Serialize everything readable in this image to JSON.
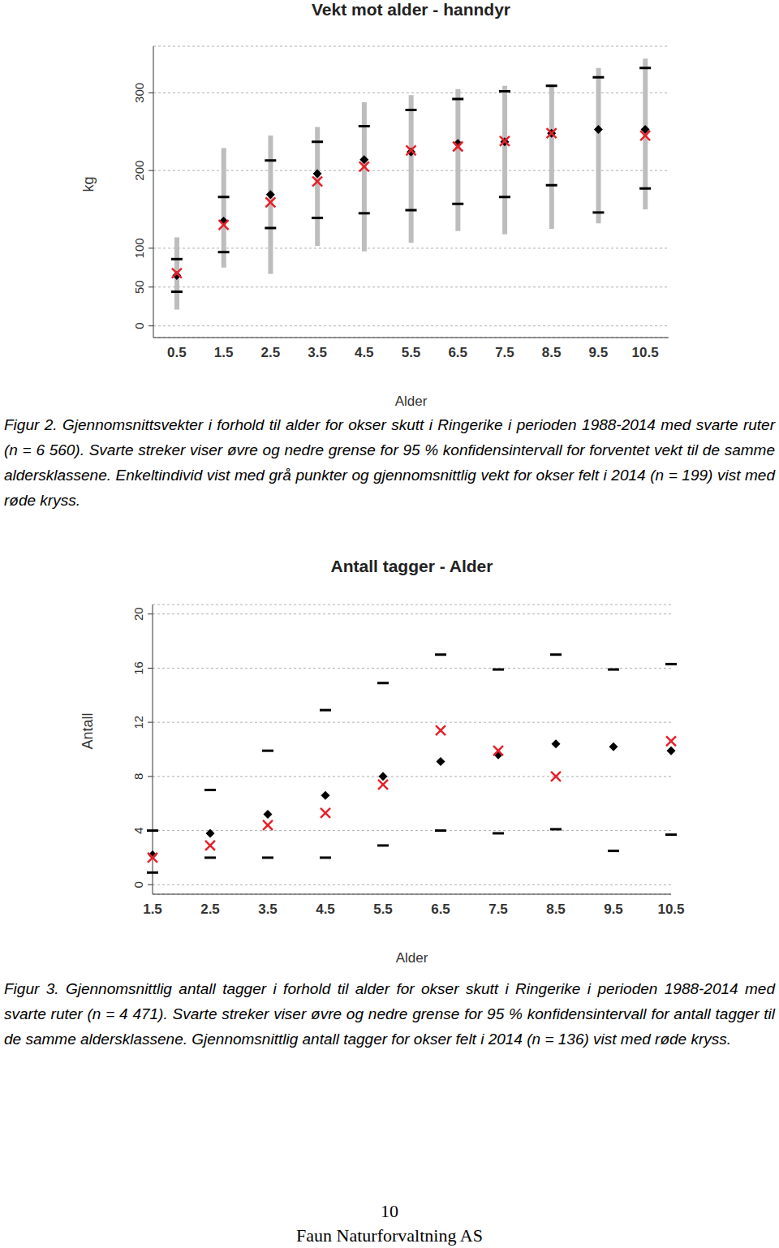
{
  "chart_data": [
    {
      "type": "scatter",
      "title": "Vekt mot alder - hanndyr",
      "x_label": "Alder",
      "y_label": "kg",
      "categories": [
        "0.5",
        "1.5",
        "2.5",
        "3.5",
        "4.5",
        "5.5",
        "6.5",
        "7.5",
        "8.5",
        "9.5",
        "10.5"
      ],
      "ylim": [
        -15,
        360
      ],
      "yticks": [
        0,
        50,
        100,
        200,
        300
      ],
      "grid": true,
      "range": {
        "color": "#bdbdbd",
        "low": [
          21,
          75,
          67,
          103,
          96,
          107,
          122,
          118,
          125,
          132,
          150
        ],
        "high": [
          114,
          229,
          245,
          256,
          288,
          297,
          305,
          309,
          311,
          332,
          344
        ]
      },
      "series": [
        {
          "color": "#000000",
          "marker": "dash",
          "values": [
            86,
            166,
            213,
            237,
            257,
            278,
            292,
            302,
            309,
            320,
            332
          ]
        },
        {
          "color": "#000000",
          "marker": "dash",
          "values": [
            44,
            95,
            126,
            139,
            145,
            149,
            157,
            166,
            181,
            146,
            177
          ]
        },
        {
          "color": "#000000",
          "marker": "diamond",
          "values": [
            65,
            135,
            169,
            196,
            214,
            224,
            235,
            237,
            248,
            253,
            253
          ]
        },
        {
          "color": "#e8202a",
          "marker": "x",
          "values": [
            68,
            130,
            159,
            186,
            205,
            226,
            231,
            238,
            248,
            null,
            245
          ]
        }
      ],
      "caption": {
        "label": "Figur 2.",
        "text": "Gjennomsnittsvekter i forhold til alder for okser skutt i Ringerike i perioden 1988-2014 med svarte ruter (n = 6 560). Svarte streker viser øvre og nedre grense for 95 % konfidensintervall for forventet vekt til de samme aldersklassene. Enkeltindivid vist med grå punkter og gjennomsnittlig vekt for okser felt i 2014 (n = 199) vist med røde kryss."
      }
    },
    {
      "type": "scatter",
      "title": "Antall tagger - Alder",
      "x_label": "Alder",
      "y_label": "Antall",
      "categories": [
        "1.5",
        "2.5",
        "3.5",
        "4.5",
        "5.5",
        "6.5",
        "7.5",
        "8.5",
        "9.5",
        "10.5"
      ],
      "ylim": [
        -0.7,
        20.7
      ],
      "yticks": [
        0,
        4,
        8,
        12,
        16,
        20
      ],
      "grid": true,
      "series": [
        {
          "color": "#000000",
          "marker": "dash",
          "values": [
            4.0,
            7.0,
            9.9,
            12.9,
            14.9,
            17.0,
            15.9,
            17.0,
            15.9,
            16.3
          ]
        },
        {
          "color": "#000000",
          "marker": "dash",
          "values": [
            0.9,
            2.0,
            2.0,
            2.0,
            2.9,
            4.0,
            3.8,
            4.1,
            2.5,
            3.7
          ]
        },
        {
          "color": "#000000",
          "marker": "diamond",
          "values": [
            2.2,
            3.8,
            5.2,
            6.6,
            8.0,
            9.1,
            9.6,
            10.4,
            10.2,
            9.9
          ]
        },
        {
          "color": "#e8202a",
          "marker": "x",
          "values": [
            2.0,
            2.9,
            4.4,
            5.3,
            7.4,
            11.4,
            9.9,
            8.0,
            null,
            10.6
          ]
        }
      ],
      "caption": {
        "label": "Figur 3.",
        "text": "Gjennomsnittlig antall tagger i forhold til alder for okser skutt i Ringerike i perioden 1988-2014 med svarte ruter (n = 4 471). Svarte streker viser øvre og nedre grense for 95 % konfidensintervall for antall tagger til de samme aldersklassene. Gjennomsnittlig antall tagger for okser felt i 2014 (n = 136) vist med røde kryss."
      }
    }
  ],
  "page_number": "10",
  "footer": "Faun Naturforvaltning AS"
}
